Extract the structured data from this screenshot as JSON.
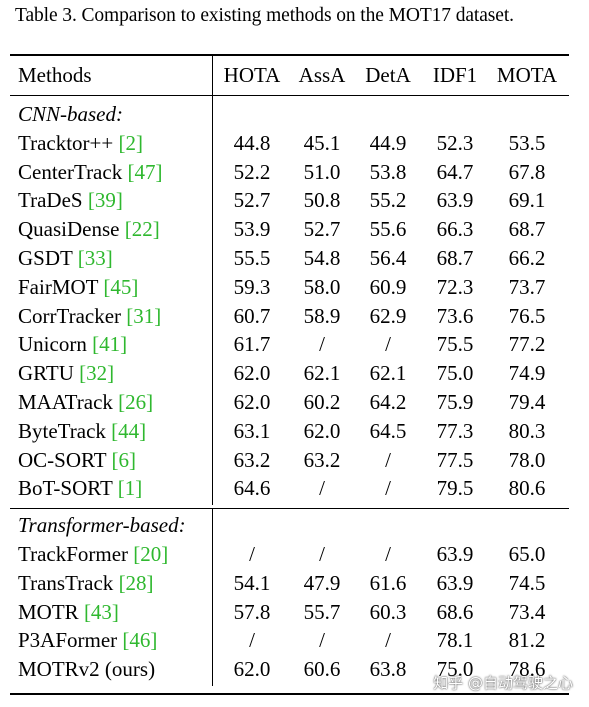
{
  "caption": "Table 3. Comparison to existing methods on the MOT17 dataset.",
  "headers": [
    "Methods",
    "HOTA",
    "AssA",
    "DetA",
    "IDF1",
    "MOTA"
  ],
  "sections": [
    {
      "title": "CNN-based:",
      "rows": [
        {
          "name": "Tracktor++",
          "ref": "[2]",
          "values": [
            "44.8",
            "45.1",
            "44.9",
            "52.3",
            "53.5"
          ]
        },
        {
          "name": "CenterTrack",
          "ref": "[47]",
          "values": [
            "52.2",
            "51.0",
            "53.8",
            "64.7",
            "67.8"
          ]
        },
        {
          "name": "TraDeS",
          "ref": "[39]",
          "values": [
            "52.7",
            "50.8",
            "55.2",
            "63.9",
            "69.1"
          ]
        },
        {
          "name": "QuasiDense",
          "ref": "[22]",
          "values": [
            "53.9",
            "52.7",
            "55.6",
            "66.3",
            "68.7"
          ]
        },
        {
          "name": "GSDT",
          "ref": "[33]",
          "values": [
            "55.5",
            "54.8",
            "56.4",
            "68.7",
            "66.2"
          ]
        },
        {
          "name": "FairMOT",
          "ref": "[45]",
          "values": [
            "59.3",
            "58.0",
            "60.9",
            "72.3",
            "73.7"
          ]
        },
        {
          "name": "CorrTracker",
          "ref": "[31]",
          "values": [
            "60.7",
            "58.9",
            "62.9",
            "73.6",
            "76.5"
          ]
        },
        {
          "name": "Unicorn",
          "ref": "[41]",
          "values": [
            "61.7",
            "/",
            "/",
            "75.5",
            "77.2"
          ]
        },
        {
          "name": "GRTU",
          "ref": "[32]",
          "values": [
            "62.0",
            "62.1",
            "62.1",
            "75.0",
            "74.9"
          ]
        },
        {
          "name": "MAATrack",
          "ref": "[26]",
          "values": [
            "62.0",
            "60.2",
            "64.2",
            "75.9",
            "79.4"
          ]
        },
        {
          "name": "ByteTrack",
          "ref": "[44]",
          "values": [
            "63.1",
            "62.0",
            "64.5",
            "77.3",
            "80.3"
          ]
        },
        {
          "name": "OC-SORT",
          "ref": "[6]",
          "values": [
            "63.2",
            "63.2",
            "/",
            "77.5",
            "78.0"
          ]
        },
        {
          "name": "BoT-SORT",
          "ref": "[1]",
          "values": [
            "64.6",
            "/",
            "/",
            "79.5",
            "80.6"
          ]
        }
      ]
    },
    {
      "title": "Transformer-based:",
      "rows": [
        {
          "name": "TrackFormer",
          "ref": "[20]",
          "values": [
            "/",
            "/",
            "/",
            "63.9",
            "65.0"
          ]
        },
        {
          "name": "TransTrack",
          "ref": "[28]",
          "values": [
            "54.1",
            "47.9",
            "61.6",
            "63.9",
            "74.5"
          ]
        },
        {
          "name": "MOTR",
          "ref": "[43]",
          "values": [
            "57.8",
            "55.7",
            "60.3",
            "68.6",
            "73.4"
          ]
        },
        {
          "name": "P3AFormer",
          "ref": "[46]",
          "values": [
            "/",
            "/",
            "/",
            "78.1",
            "81.2"
          ]
        },
        {
          "name": "MOTRv2 (ours)",
          "ref": "",
          "values": [
            "62.0",
            "60.6",
            "63.8",
            "75.0",
            "78.6"
          ]
        }
      ]
    }
  ],
  "watermark": "知乎 @自动驾驶之心",
  "colors": {
    "ref": "#2fb82f",
    "text": "#000000"
  }
}
